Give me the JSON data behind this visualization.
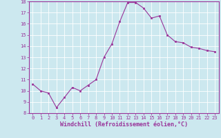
{
  "x": [
    0,
    1,
    2,
    3,
    4,
    5,
    6,
    7,
    8,
    9,
    10,
    11,
    12,
    13,
    14,
    15,
    16,
    17,
    18,
    19,
    20,
    21,
    22,
    23
  ],
  "y": [
    10.6,
    10.0,
    9.8,
    8.5,
    9.4,
    10.3,
    10.0,
    10.5,
    11.0,
    13.0,
    14.2,
    16.2,
    17.9,
    17.9,
    17.4,
    16.5,
    16.7,
    15.0,
    14.4,
    14.3,
    13.9,
    13.8,
    13.6,
    13.5
  ],
  "line_color": "#993399",
  "marker": "s",
  "marker_size": 1.8,
  "bg_color": "#cce8ef",
  "grid_color": "#ffffff",
  "xlabel": "Windchill (Refroidissement éolien,°C)",
  "xlabel_color": "#993399",
  "tick_color": "#993399",
  "ylim": [
    8,
    18
  ],
  "xlim": [
    -0.5,
    23.5
  ],
  "yticks": [
    8,
    9,
    10,
    11,
    12,
    13,
    14,
    15,
    16,
    17,
    18
  ],
  "xticks": [
    0,
    1,
    2,
    3,
    4,
    5,
    6,
    7,
    8,
    9,
    10,
    11,
    12,
    13,
    14,
    15,
    16,
    17,
    18,
    19,
    20,
    21,
    22,
    23
  ],
  "tick_fontsize": 5.0,
  "xlabel_fontsize": 6.0
}
